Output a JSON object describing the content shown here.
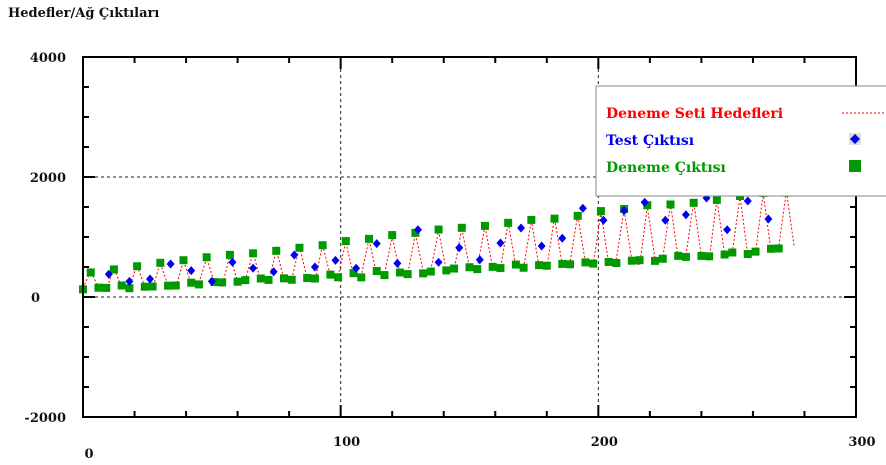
{
  "title": "Hedefler/Ağ Çıktıları",
  "colors": {
    "targets": "#ff0000",
    "test": "#0000ee",
    "train": "#009900"
  },
  "chart_data": {
    "type": "scatter",
    "title": "Hedefler/Ağ Çıktıları",
    "xlim": [
      0,
      300
    ],
    "ylim": [
      -2000,
      4000
    ],
    "x_ticks": [
      {
        "value": 0,
        "label": "0"
      },
      {
        "value": 100,
        "label": "100"
      },
      {
        "value": 200,
        "label": "200"
      },
      {
        "value": 300,
        "label": "300"
      }
    ],
    "y_ticks": [
      {
        "value": -2000,
        "label": "-2000"
      },
      {
        "value": 0,
        "label": "0"
      },
      {
        "value": 2000,
        "label": "2000"
      },
      {
        "value": 4000,
        "label": "4000"
      }
    ],
    "grid": "dotted at major ticks",
    "legend_position": "top-right",
    "series": [
      {
        "name": "Deneme Seti Hedefleri",
        "style": "dotted-line",
        "color": "#ff0000",
        "x": [
          0,
          3,
          6,
          9,
          12,
          15,
          18,
          21,
          24,
          27,
          30,
          33,
          36,
          39,
          42,
          45,
          48,
          51,
          54,
          57,
          60,
          63,
          66,
          69,
          72,
          75,
          78,
          81,
          84,
          87,
          90,
          93,
          96,
          99,
          102,
          105,
          108,
          111,
          114,
          117,
          120,
          123,
          126,
          129,
          132,
          135,
          138,
          141,
          144,
          147,
          150,
          153,
          156,
          159,
          162,
          165,
          168,
          171,
          174,
          177,
          180,
          183,
          186,
          189,
          192,
          195,
          198,
          201,
          204,
          207,
          210,
          213,
          216,
          219,
          222,
          225,
          228,
          231,
          234,
          237,
          240,
          243,
          246,
          249,
          252,
          255,
          258,
          261,
          264,
          267,
          270,
          273,
          276
        ],
        "y": [
          147,
          431,
          158,
          126,
          475,
          171,
          188,
          519,
          178,
          150,
          564,
          194,
          158,
          609,
          215,
          234,
          654,
          233,
          178,
          698,
          258,
          287,
          743,
          262,
          232,
          788,
          292,
          300,
          832,
          315,
          252,
          877,
          346,
          351,
          921,
          358,
          360,
          966,
          371,
          384,
          1011,
          404,
          386,
          1055,
          436,
          463,
          1100,
          438,
          436,
          1145,
          486,
          485,
          1189,
          469,
          473,
          1234,
          514,
          484,
          1278,
          501,
          484,
          1323,
          534,
          576,
          1368,
          568,
          526,
          1412,
          570,
          636,
          1457,
          618,
          525,
          1502,
          637,
          655,
          1546,
          647,
          691,
          1591,
          674,
          610,
          1636,
          708,
          744,
          1680,
          697,
          743,
          1725,
          775,
          832,
          1769,
          834
        ]
      },
      {
        "name": "Test Çıktısı",
        "style": "blue-diamond",
        "color": "#0000ee",
        "x": [
          10,
          18,
          26,
          34,
          42,
          50,
          58,
          66,
          74,
          82,
          90,
          98,
          106,
          114,
          122,
          130,
          138,
          146,
          154,
          162,
          170,
          178,
          186,
          194,
          202,
          210,
          218,
          226,
          234,
          242,
          250,
          258,
          266,
          274
        ],
        "y": [
          380,
          260,
          300,
          550,
          440,
          260,
          580,
          480,
          420,
          700,
          500,
          610,
          480,
          890,
          560,
          1120,
          580,
          820,
          620,
          900,
          1150,
          850,
          980,
          1480,
          1280,
          1440,
          1580,
          1280,
          1370,
          1650,
          1120,
          1600,
          1300,
          1750
        ]
      },
      {
        "name": "Deneme Çıktısı",
        "style": "green-square",
        "color": "#009900",
        "x": [
          0,
          3,
          6,
          9,
          12,
          15,
          18,
          21,
          24,
          27,
          30,
          33,
          36,
          39,
          42,
          45,
          48,
          51,
          54,
          57,
          60,
          63,
          66,
          69,
          72,
          75,
          78,
          81,
          84,
          87,
          90,
          93,
          96,
          99,
          102,
          105,
          108,
          111,
          114,
          117,
          120,
          123,
          126,
          129,
          132,
          135,
          138,
          141,
          144,
          147,
          150,
          153,
          156,
          159,
          162,
          165,
          168,
          171,
          174,
          177,
          180,
          183,
          186,
          189,
          192,
          195,
          198,
          201,
          204,
          207,
          210,
          213,
          216,
          219,
          222,
          225,
          228,
          231,
          234,
          237,
          240,
          243,
          246,
          249,
          252,
          255,
          258,
          261,
          264,
          267,
          270,
          273
        ],
        "y": [
          128,
          409,
          155,
          152,
          460,
          192,
          146,
          513,
          171,
          175,
          570,
          189,
          192,
          613,
          238,
          210,
          662,
          249,
          244,
          702,
          255,
          281,
          728,
          308,
          285,
          770,
          311,
          288,
          821,
          316,
          308,
          863,
          373,
          329,
          932,
          398,
          327,
          969,
          433,
          365,
          1032,
          408,
          381,
          1069,
          394,
          424,
          1125,
          443,
          474,
          1153,
          496,
          465,
          1185,
          502,
          482,
          1236,
          541,
          488,
          1285,
          531,
          521,
          1306,
          551,
          545,
          1353,
          577,
          557,
          1432,
          584,
          567,
          1466,
          605,
          614,
          1530,
          602,
          638,
          1542,
          686,
          668,
          1570,
          685,
          678,
          1619,
          708,
          742,
          1683,
          716,
          756,
          1734,
          804,
          809,
          1739
        ]
      }
    ]
  }
}
